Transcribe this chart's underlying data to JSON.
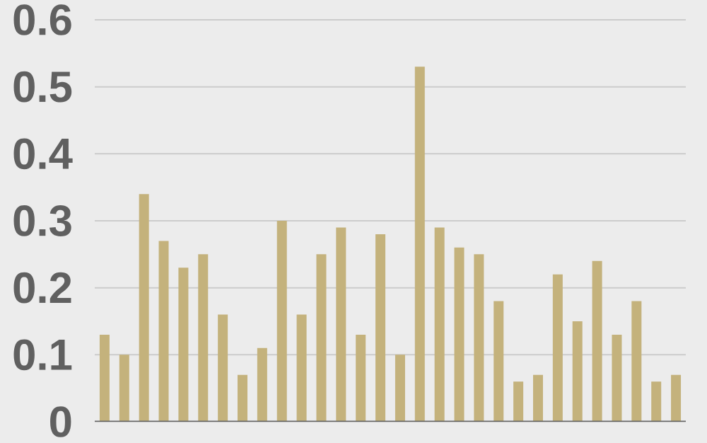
{
  "chart_data": {
    "type": "bar",
    "categories": [
      null,
      null,
      null,
      null,
      null,
      null,
      null,
      null,
      null,
      null,
      null,
      null,
      null,
      null,
      null,
      null,
      null,
      null,
      null,
      null,
      null,
      null,
      null,
      null,
      null,
      null,
      null,
      null,
      null,
      null
    ],
    "values": [
      0.13,
      0.1,
      0.34,
      0.27,
      0.23,
      0.25,
      0.16,
      0.07,
      0.11,
      0.3,
      0.16,
      0.25,
      0.29,
      0.13,
      0.28,
      0.1,
      0.53,
      0.29,
      0.26,
      0.25,
      0.18,
      0.06,
      0.07,
      0.22,
      0.15,
      0.24,
      0.13,
      0.18,
      0.06,
      0.07
    ],
    "color": "#c4b27c",
    "ylim": [
      0,
      0.6
    ],
    "yticks": [
      0,
      0.1,
      0.2,
      0.3,
      0.4,
      0.5,
      0.6
    ],
    "grid": "y"
  }
}
